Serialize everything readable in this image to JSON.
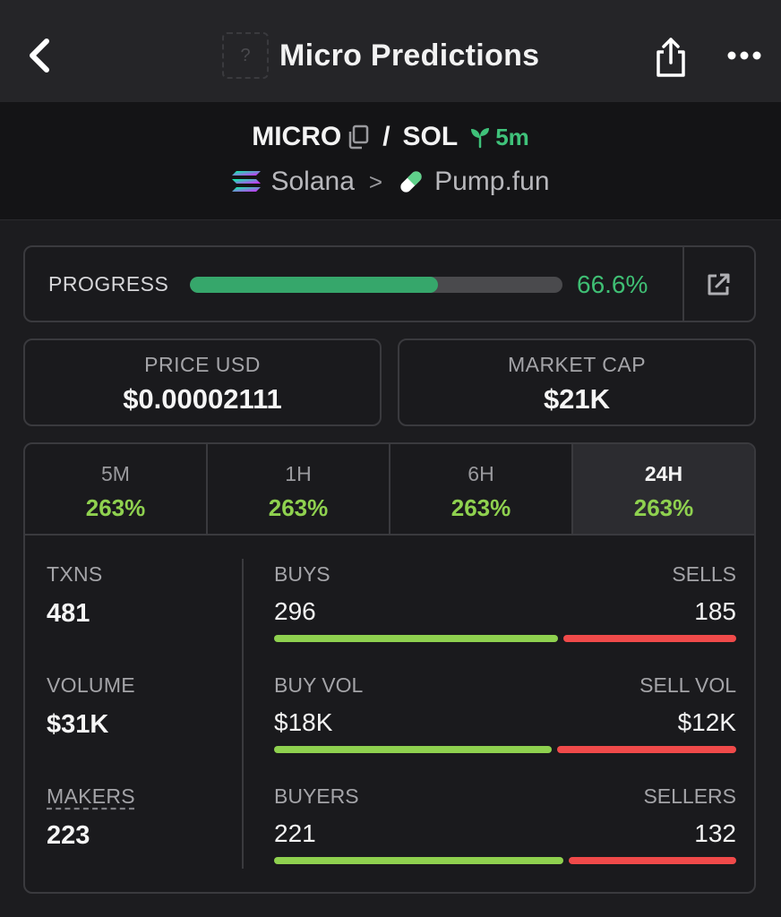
{
  "header": {
    "title": "Micro Predictions",
    "token_placeholder": "?"
  },
  "pair": {
    "base": "MICRO",
    "slash": "/",
    "quote": "SOL",
    "age": "5m",
    "chain": "Solana",
    "separator": ">",
    "dex": "Pump.fun"
  },
  "progress": {
    "label": "PROGRESS",
    "percent_text": "66.6%",
    "fraction": 0.666
  },
  "price": {
    "label": "PRICE USD",
    "value": "$0.00002111"
  },
  "market_cap": {
    "label": "MARKET CAP",
    "value": "$21K"
  },
  "tabs": [
    {
      "label": "5M",
      "value": "263%",
      "active": false
    },
    {
      "label": "1H",
      "value": "263%",
      "active": false
    },
    {
      "label": "6H",
      "value": "263%",
      "active": false
    },
    {
      "label": "24H",
      "value": "263%",
      "active": true
    }
  ],
  "metrics": {
    "txns": {
      "label": "TXNS",
      "value": "481"
    },
    "volume": {
      "label": "VOLUME",
      "value": "$31K"
    },
    "makers": {
      "label": "MAKERS",
      "value": "223"
    }
  },
  "splits": {
    "txns": {
      "left_label": "BUYS",
      "right_label": "SELLS",
      "left_value": "296",
      "right_value": "185",
      "left_fraction": 0.615
    },
    "volume": {
      "left_label": "BUY VOL",
      "right_label": "SELL VOL",
      "left_value": "$18K",
      "right_value": "$12K",
      "left_fraction": 0.6
    },
    "makers": {
      "left_label": "BUYERS",
      "right_label": "SELLERS",
      "left_value": "221",
      "right_value": "132",
      "left_fraction": 0.626
    }
  },
  "colors": {
    "buy": "#8fd14f",
    "sell": "#f04a4a",
    "progress": "#36a76b",
    "age": "#3fc27a"
  },
  "icons": {
    "back": "chevron-left-icon",
    "share": "share-icon",
    "more": "more-dots-icon",
    "copy": "copy-icon",
    "age": "seedling-icon",
    "chain": "solana-icon",
    "dex": "pill-icon",
    "external": "external-link-icon"
  }
}
